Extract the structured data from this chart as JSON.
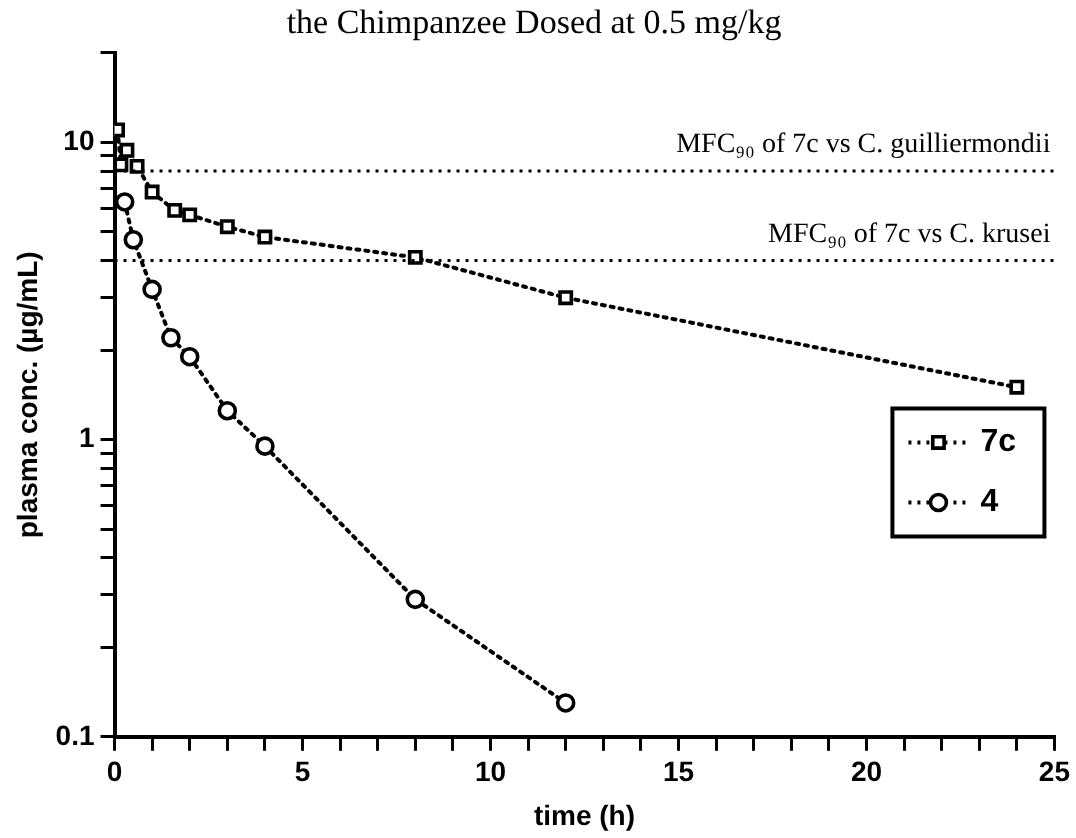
{
  "chart_data": {
    "type": "line",
    "title": "the Chimpanzee Dosed at 0.5 mg/kg",
    "xlabel": "time (h)",
    "ylabel": "plasma conc. (µg/mL)",
    "log": "y",
    "grid": false,
    "legend": "right",
    "line_style": "dotted",
    "xlim": [
      0,
      25
    ],
    "xticks": [
      0,
      {
        "value": 1,
        "label": null
      },
      {
        "value": 2,
        "label": null
      },
      {
        "value": 3,
        "label": null
      },
      {
        "value": 4,
        "label": null
      },
      5,
      {
        "value": 6,
        "label": null
      },
      {
        "value": 7,
        "label": null
      },
      {
        "value": 8,
        "label": null
      },
      {
        "value": 9,
        "label": null
      },
      10,
      {
        "value": 11,
        "label": null
      },
      {
        "value": 12,
        "label": null
      },
      {
        "value": 13,
        "label": null
      },
      {
        "value": 14,
        "label": null
      },
      15,
      {
        "value": 16,
        "label": null
      },
      {
        "value": 17,
        "label": null
      },
      {
        "value": 18,
        "label": null
      },
      {
        "value": 19,
        "label": null
      },
      20,
      {
        "value": 21,
        "label": null
      },
      {
        "value": 22,
        "label": null
      },
      {
        "value": 23,
        "label": null
      },
      {
        "value": 24,
        "label": null
      },
      25
    ],
    "ylim": [
      0.1,
      20
    ],
    "yticks": [
      0.1,
      {
        "value": 0.2,
        "label": null
      },
      {
        "value": 0.3,
        "label": null
      },
      {
        "value": 0.4,
        "label": null
      },
      {
        "value": 0.5,
        "label": null
      },
      {
        "value": 0.6,
        "label": null
      },
      {
        "value": 0.7,
        "label": null
      },
      {
        "value": 0.8,
        "label": null
      },
      {
        "value": 0.9,
        "label": null
      },
      1,
      {
        "value": 2,
        "label": null
      },
      {
        "value": 3,
        "label": null
      },
      {
        "value": 4,
        "label": null
      },
      {
        "value": 5,
        "label": null
      },
      {
        "value": 6,
        "label": null
      },
      {
        "value": 7,
        "label": null
      },
      {
        "value": 8,
        "label": null
      },
      {
        "value": 9,
        "label": null
      },
      10,
      {
        "value": 20,
        "label": null
      }
    ],
    "ref_lines": [
      {
        "axis": "y",
        "value": 8,
        "label": "MFC₉₀ of 7c vs C. guilliermondii",
        "line_style": "dotted"
      },
      {
        "axis": "y",
        "value": 4,
        "label": "MFC₉₀ of 7c vs C. krusei",
        "line_style": "dotted"
      }
    ],
    "series": [
      {
        "name": "7c",
        "color": "#000000",
        "marker": "square",
        "x": [
          0.08,
          0.17,
          0.33,
          0.6,
          1,
          1.6,
          2,
          3,
          4,
          8,
          12,
          24
        ],
        "values": [
          11,
          8.4,
          9.4,
          8.3,
          6.8,
          5.9,
          5.7,
          5.2,
          4.8,
          4.1,
          3.0,
          1.5
        ]
      },
      {
        "name": "4",
        "color": "#000000",
        "marker": "circle",
        "x": [
          0.27,
          0.5,
          1,
          1.5,
          2,
          3,
          4,
          8,
          12
        ],
        "values": [
          6.3,
          4.7,
          3.2,
          2.2,
          1.9,
          1.25,
          0.95,
          0.29,
          0.13
        ]
      }
    ]
  }
}
